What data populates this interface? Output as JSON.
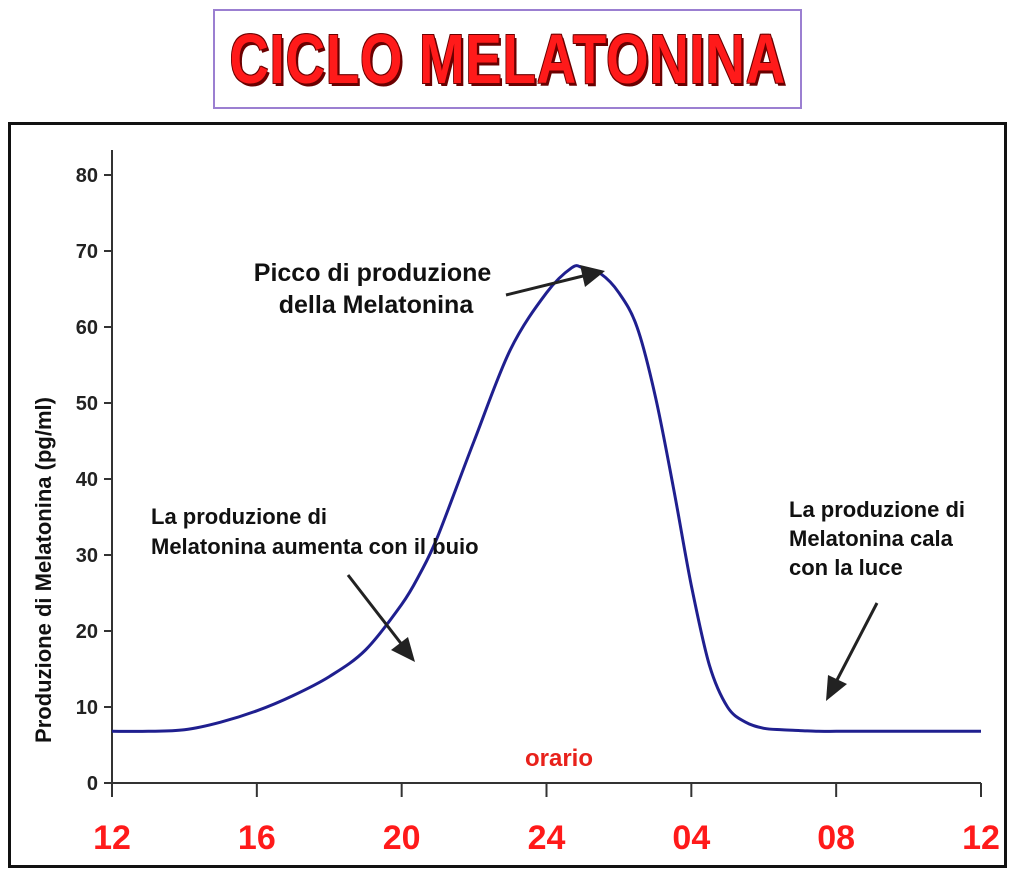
{
  "colors": {
    "title": "#ff1a1a",
    "curve": "#1f1f8f",
    "x_ticks": "#ff1a1a",
    "xlabel": "#e8211b"
  },
  "title": "CICLO MELATONINA",
  "chart_data": {
    "type": "line",
    "title": "CICLO MELATONINA",
    "xlabel": "orario",
    "ylabel": "Produzione di Melatonina (pg/ml)",
    "ylim": [
      0,
      80
    ],
    "yticks": [
      "0",
      "10",
      "20",
      "30",
      "40",
      "50",
      "60",
      "70",
      "80"
    ],
    "xticks": [
      "12",
      "16",
      "20",
      "24",
      "04",
      "08",
      "12"
    ],
    "grid": false,
    "legend": "none",
    "series": [
      {
        "x": [
          0,
          1,
          2,
          3,
          4,
          5,
          6,
          7,
          8,
          8.5,
          9,
          10,
          11,
          12,
          12.7,
          13,
          13.5,
          14,
          14.5,
          15,
          15.5,
          16,
          16.5,
          17,
          17.5,
          18,
          18.5,
          19,
          19.5,
          20,
          20.5,
          21,
          22,
          23,
          24
        ],
        "y": [
          6.8,
          6.8,
          7.0,
          8.0,
          9.5,
          11.5,
          14.0,
          17.5,
          23.5,
          27.5,
          32.5,
          45.0,
          57.0,
          64.5,
          67.8,
          67.8,
          67.0,
          64.5,
          60.0,
          51.0,
          39.0,
          26.0,
          15.5,
          10.0,
          8.0,
          7.2,
          7.0,
          6.9,
          6.8,
          6.8,
          6.8,
          6.8,
          6.8,
          6.8,
          6.8
        ]
      }
    ],
    "annotations": [
      {
        "id": "peak",
        "lines": [
          "Picco di produzione",
          "della Melatonina"
        ]
      },
      {
        "id": "rise",
        "lines": [
          "La produzione di",
          "Melatonina aumenta con il buio"
        ]
      },
      {
        "id": "fall",
        "lines": [
          "La produzione di",
          "Melatonina cala",
          "con la luce"
        ]
      }
    ]
  }
}
